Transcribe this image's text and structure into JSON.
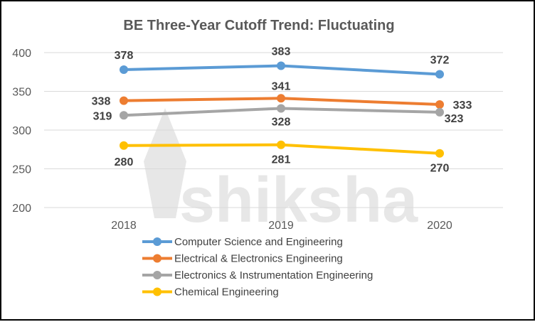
{
  "chart_data": {
    "type": "line",
    "title": "BE Three-Year Cutoff Trend: Fluctuating",
    "xlabel": "",
    "ylabel": "",
    "categories": [
      "2018",
      "2019",
      "2020"
    ],
    "ylim": [
      200,
      400
    ],
    "yticks": [
      "200",
      "250",
      "300",
      "350",
      "400"
    ],
    "grid": true,
    "legend_position": "bottom",
    "series": [
      {
        "name": "Computer Science and Engineering",
        "values": [
          378,
          383,
          372
        ],
        "color": "#5B9BD5"
      },
      {
        "name": "Electrical & Electronics Engineering",
        "values": [
          338,
          341,
          333
        ],
        "color": "#ED7D31"
      },
      {
        "name": "Electronics & Instrumentation Engineering",
        "values": [
          319,
          328,
          323
        ],
        "color": "#A5A5A5"
      },
      {
        "name": "Chemical Engineering",
        "values": [
          280,
          281,
          270
        ],
        "color": "#FFC000"
      }
    ],
    "watermark": "shiksha"
  }
}
